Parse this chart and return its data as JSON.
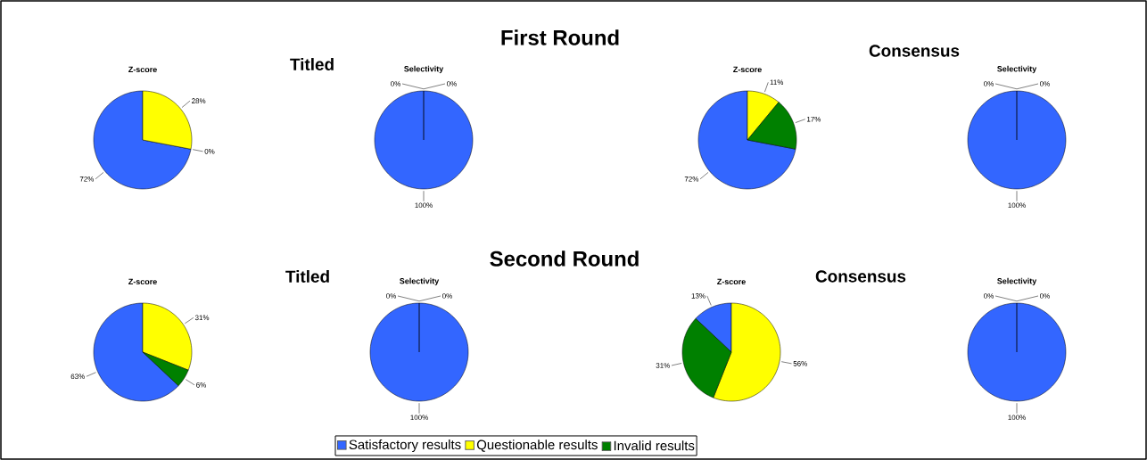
{
  "chart_data": [
    {
      "type": "pie",
      "title": "Z-score",
      "annotations": [
        "First Round",
        "Titled"
      ],
      "categories": [
        "Satisfactory results",
        "Questionable results",
        "Invalid results"
      ],
      "values": [
        72,
        28,
        0
      ],
      "value_labels": [
        "72%",
        "28%",
        "0%"
      ],
      "colors": [
        "#3366ff",
        "#ffff00",
        "#008000"
      ],
      "legend": "bottom"
    },
    {
      "type": "pie",
      "title": "Selectivity",
      "categories": [
        null,
        null,
        null
      ],
      "values": [
        100,
        0,
        0
      ],
      "value_labels": [
        "100%",
        "0%",
        "0%"
      ],
      "colors": [
        "#3366ff",
        "#ffff00",
        "#008000"
      ]
    },
    {
      "type": "pie",
      "title": "Z-score",
      "annotations": [
        "Consensus"
      ],
      "categories": [
        null,
        null,
        null
      ],
      "values": [
        72,
        11,
        17
      ],
      "value_labels": [
        "72%",
        "11%",
        "17%"
      ],
      "colors": [
        "#3366ff",
        "#ffff00",
        "#008000"
      ]
    },
    {
      "type": "pie",
      "title": "Selectivity",
      "categories": [
        null,
        null,
        null
      ],
      "values": [
        100,
        0,
        0
      ],
      "value_labels": [
        "100%",
        "0%",
        "0%"
      ],
      "colors": [
        "#3366ff",
        "#ffff00",
        "#008000"
      ]
    },
    {
      "type": "pie",
      "title": "Z-score",
      "annotations": [
        "Second Round",
        "Titled"
      ],
      "categories": [
        null,
        null,
        null
      ],
      "values": [
        63,
        31,
        6
      ],
      "value_labels": [
        "63%",
        "31%",
        "6%"
      ],
      "colors": [
        "#3366ff",
        "#ffff00",
        "#008000"
      ]
    },
    {
      "type": "pie",
      "title": "Selectivity",
      "categories": [
        null,
        null,
        null
      ],
      "values": [
        100,
        0,
        0
      ],
      "value_labels": [
        "100%",
        "0%",
        "0%"
      ],
      "colors": [
        "#3366ff",
        "#ffff00",
        "#008000"
      ]
    },
    {
      "type": "pie",
      "title": "Z-score",
      "annotations": [
        "Consensus"
      ],
      "categories": [
        null,
        null,
        null
      ],
      "values": [
        13,
        56,
        31
      ],
      "value_labels": [
        "13%",
        "56%",
        "31%"
      ],
      "colors": [
        "#3366ff",
        "#ffff00",
        "#008000"
      ]
    },
    {
      "type": "pie",
      "title": "Selectivity",
      "categories": [
        null,
        null,
        null
      ],
      "values": [
        100,
        0,
        0
      ],
      "value_labels": [
        "100%",
        "0%",
        "0%"
      ],
      "colors": [
        "#3366ff",
        "#ffff00",
        "#008000"
      ]
    }
  ]
}
